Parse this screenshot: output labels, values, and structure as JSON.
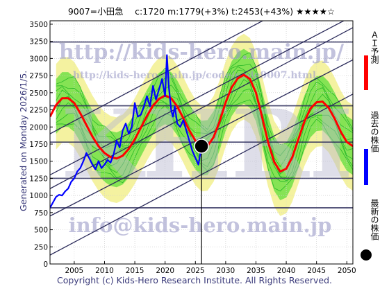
{
  "header": {
    "text": "9007=小田急　 c:1720  m:1779(+3%)  t:2453(+43%)  ★★★★☆"
  },
  "generated_label": "Generated on Monday 2026/1/5.",
  "footer": "Copyright (c) Kids-Hero Research Institute. All Rights Reserved.",
  "watermarks": {
    "top": "http://kids-hero.main.jp/",
    "mid": "http://kids-hero.main.jp/code/code9007.html",
    "big": "KHRI",
    "bottom": "info@kids-hero.main.jp"
  },
  "legend": [
    {
      "label": "ＡＩ予測",
      "color": "#ff0000",
      "kind": "line"
    },
    {
      "label": "過去の株価",
      "color": "#0000ff",
      "kind": "line"
    },
    {
      "label": "最新の株価",
      "color": "#000000",
      "kind": "dot"
    }
  ],
  "colors": {
    "ai_forecast": "#ff0000",
    "past_price": "#0000ff",
    "latest_price": "#000000",
    "channel_lines": "#2a2a5a",
    "band_green": "#55dd33",
    "band_yellow": "#f4f2a0",
    "green_lines": "#28b828"
  },
  "chart_data": {
    "type": "line",
    "xlim": [
      2001,
      2051
    ],
    "ylim": [
      0,
      3550
    ],
    "xticks": [
      2005,
      2010,
      2015,
      2020,
      2025,
      2030,
      2035,
      2040,
      2045,
      2050
    ],
    "yticks": [
      0,
      250,
      500,
      750,
      1000,
      1250,
      1500,
      1750,
      2000,
      2250,
      2500,
      2750,
      3000,
      3250,
      3500
    ],
    "grid": true,
    "horizontal_levels": [
      820,
      1250,
      1779,
      2310,
      3240
    ],
    "channel_lines": [
      {
        "y2001": 130,
        "y2051": 2480
      },
      {
        "y2001": 700,
        "y2051": 2980
      },
      {
        "y2001": 1100,
        "y2051": 3450
      },
      {
        "y2001": 1300,
        "y2051": 3620
      },
      {
        "y2001": 1900,
        "y2051": 4250
      }
    ],
    "latest_price": {
      "x": 2026.01,
      "y": 1720
    },
    "series": [
      {
        "name": "ＡＩ予測",
        "x": [
          2001,
          2002,
          2003,
          2004,
          2005,
          2006,
          2007,
          2008,
          2009,
          2010,
          2011,
          2012,
          2013,
          2014,
          2015,
          2016,
          2017,
          2018,
          2019,
          2020,
          2021,
          2022,
          2023,
          2024,
          2025,
          2026,
          2027,
          2028,
          2029,
          2030,
          2031,
          2032,
          2033,
          2034,
          2035,
          2036,
          2037,
          2038,
          2039,
          2040,
          2041,
          2042,
          2043,
          2044,
          2045,
          2046,
          2047,
          2048,
          2049,
          2050,
          2051
        ],
        "values": [
          2150,
          2320,
          2420,
          2420,
          2350,
          2200,
          2030,
          1860,
          1720,
          1620,
          1560,
          1540,
          1580,
          1680,
          1820,
          1990,
          2160,
          2310,
          2410,
          2460,
          2420,
          2300,
          2130,
          1950,
          1800,
          1710,
          1720,
          1850,
          2080,
          2360,
          2580,
          2710,
          2760,
          2700,
          2500,
          2150,
          1780,
          1490,
          1350,
          1390,
          1560,
          1820,
          2080,
          2270,
          2360,
          2370,
          2280,
          2120,
          1930,
          1780,
          1720
        ]
      },
      {
        "name": "過去の株価",
        "x": [
          2001,
          2001.5,
          2002,
          2002.5,
          2003,
          2003.5,
          2004,
          2004.5,
          2005,
          2005.5,
          2006,
          2006.5,
          2007,
          2007.5,
          2008,
          2008.5,
          2009,
          2009.5,
          2010,
          2010.5,
          2011,
          2011.5,
          2012,
          2012.5,
          2013,
          2013.5,
          2014,
          2014.5,
          2015,
          2015.5,
          2016,
          2016.5,
          2017,
          2017.5,
          2018,
          2018.5,
          2019,
          2019.5,
          2020,
          2020.3,
          2020.6,
          2021,
          2021.3,
          2021.6,
          2022,
          2022.5,
          2023,
          2023.5,
          2024,
          2024.5,
          2025,
          2025.5,
          2026
        ],
        "values": [
          820,
          900,
          980,
          1010,
          1000,
          1060,
          1100,
          1200,
          1250,
          1350,
          1400,
          1500,
          1620,
          1540,
          1450,
          1380,
          1500,
          1400,
          1450,
          1520,
          1480,
          1600,
          1800,
          1700,
          1950,
          2050,
          1900,
          2000,
          2350,
          2150,
          2180,
          2300,
          2450,
          2300,
          2600,
          2400,
          2550,
          2700,
          2450,
          3050,
          2600,
          2250,
          2150,
          2300,
          2050,
          2000,
          2100,
          1950,
          1800,
          1650,
          1550,
          1450,
          1720
        ]
      }
    ]
  }
}
